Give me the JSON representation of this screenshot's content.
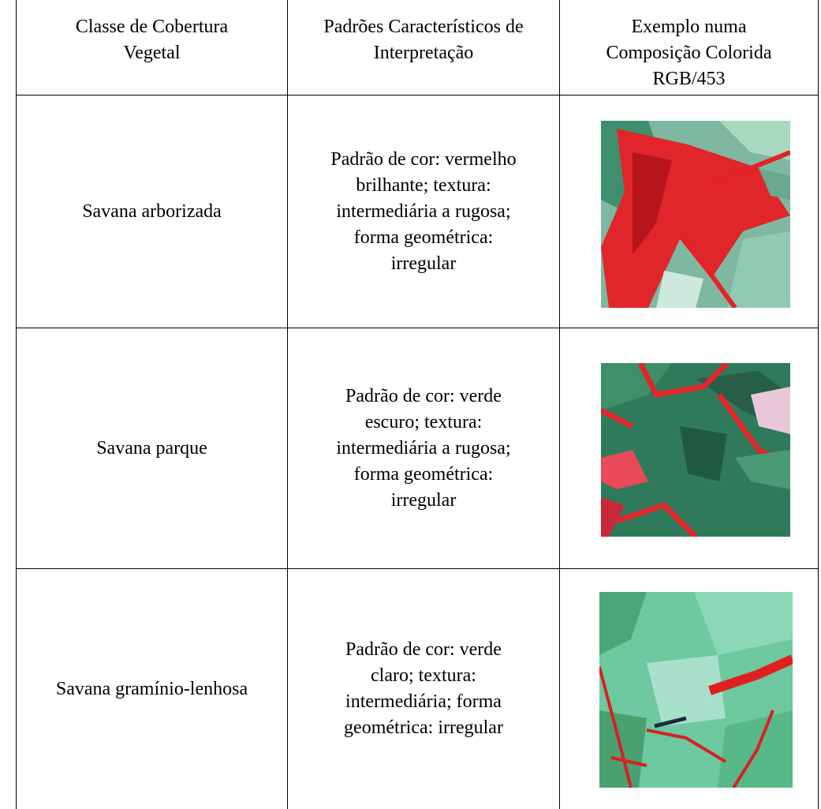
{
  "table": {
    "header": [
      [
        "Classe de Cobertura",
        "Vegetal"
      ],
      [
        "Padrões Característicos de",
        "Interpretação"
      ],
      [
        "Exemplo numa",
        "Composição Colorida",
        "RGB/453"
      ]
    ],
    "rows": [
      [
        [
          "Savana arborizada"
        ],
        [
          "Padrão de cor: vermelho",
          "brilhante; textura:",
          "intermediária a rugosa;",
          "forma geométrica:",
          "irregular"
        ]
      ],
      [
        [
          "Savana parque"
        ],
        [
          "Padrão de cor: verde",
          "escuro; textura:",
          "intermediária a rugosa;",
          "forma geométrica:",
          "irregular"
        ]
      ],
      [
        [
          "Savana gramínio-lenhosa"
        ],
        [
          "Padrão de cor: verde",
          "claro; textura:",
          "intermediária; forma",
          "geométrica: irregular"
        ]
      ]
    ]
  }
}
